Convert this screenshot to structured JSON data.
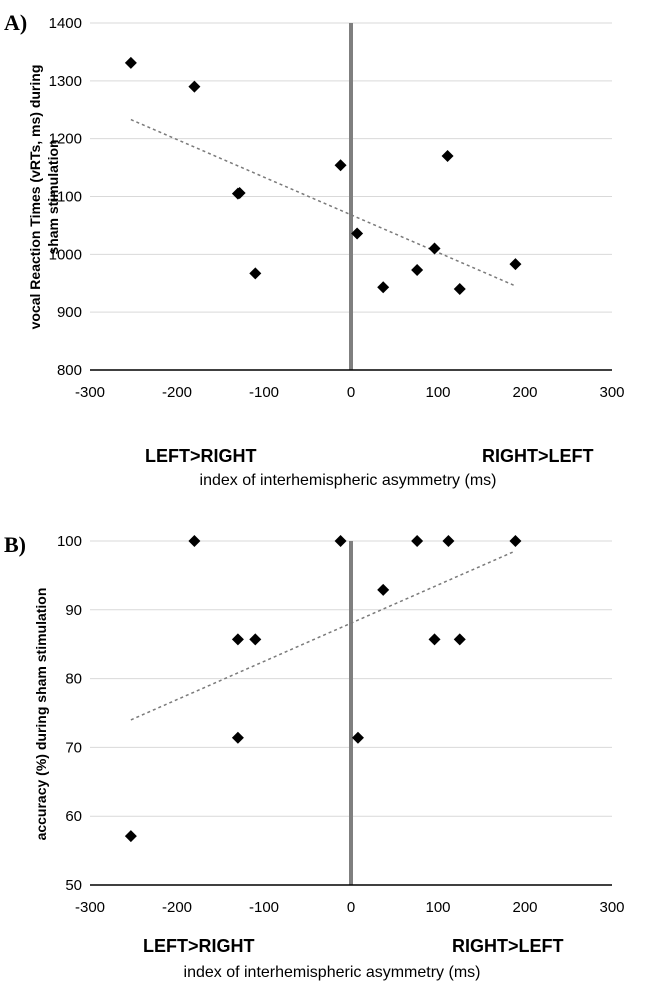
{
  "chart_data": [
    {
      "type": "scatter",
      "panel_label": "A)",
      "ylabel_line1": "vocal Reaction Times (vRTs, ms) during",
      "ylabel_line2": "sham stimulation",
      "xlabel": "index of interhemispheric asymmetry (ms)",
      "left_annotation": "LEFT>RIGHT",
      "right_annotation": "RIGHT>LEFT",
      "xlim": [
        -300,
        300
      ],
      "ylim": [
        800,
        1400
      ],
      "xticks": [
        -300,
        -200,
        -100,
        0,
        100,
        200,
        300
      ],
      "yticks": [
        800,
        900,
        1000,
        1100,
        1200,
        1300,
        1400
      ],
      "grid": true,
      "trendline": [
        [
          -253,
          1233
        ],
        [
          188,
          946
        ]
      ],
      "points": [
        [
          -253,
          1331
        ],
        [
          -180,
          1290
        ],
        [
          -130,
          1105
        ],
        [
          -128,
          1106
        ],
        [
          -110,
          967
        ],
        [
          -12,
          1154
        ],
        [
          7,
          1036
        ],
        [
          37,
          943
        ],
        [
          76,
          973
        ],
        [
          96,
          1010
        ],
        [
          111,
          1170
        ],
        [
          125,
          940
        ],
        [
          189,
          983
        ]
      ]
    },
    {
      "type": "scatter",
      "panel_label": "B)",
      "ylabel_line1": "accuracy (%) during sham stimulation",
      "ylabel_line2": "",
      "xlabel": "index of interhemispheric asymmetry (ms)",
      "left_annotation": "LEFT>RIGHT",
      "right_annotation": "RIGHT>LEFT",
      "xlim": [
        -300,
        300
      ],
      "ylim": [
        50,
        100
      ],
      "xticks": [
        -300,
        -200,
        -100,
        0,
        100,
        200,
        300
      ],
      "yticks": [
        50,
        60,
        70,
        80,
        90,
        100
      ],
      "grid": true,
      "trendline": [
        [
          -253,
          74
        ],
        [
          188,
          98.5
        ]
      ],
      "points": [
        [
          -253,
          57.1
        ],
        [
          -180,
          100
        ],
        [
          -130,
          85.7
        ],
        [
          -130,
          71.4
        ],
        [
          -110,
          85.7
        ],
        [
          -12,
          100
        ],
        [
          8,
          71.4
        ],
        [
          37,
          92.9
        ],
        [
          76,
          100
        ],
        [
          96,
          85.7
        ],
        [
          112,
          100
        ],
        [
          125,
          85.7
        ],
        [
          189,
          100
        ]
      ]
    }
  ]
}
